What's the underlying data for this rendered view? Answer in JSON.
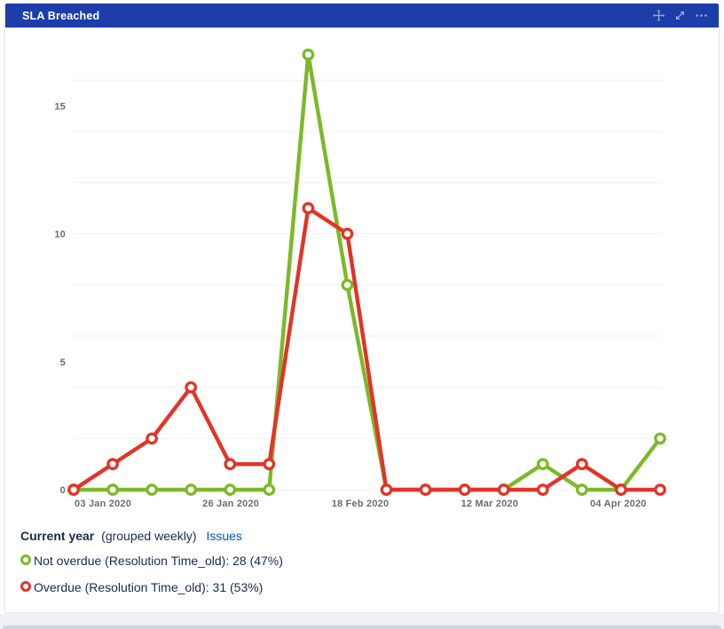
{
  "widget": {
    "title": "SLA Breached",
    "toolbar_icons": [
      "move-icon",
      "expand-icon",
      "more-icon"
    ],
    "colors": {
      "header_bg": "#1d3ea9",
      "header_text": "#ffffff",
      "icon": "#98a9e0"
    }
  },
  "chart_data": {
    "type": "line",
    "title": "SLA Breached",
    "x_unit": "week",
    "num_points": 16,
    "x_tick_labels": [
      {
        "label": "03 Jan 2020",
        "pos": 0.75
      },
      {
        "label": "26 Jan 2020",
        "pos": 4.02
      },
      {
        "label": "18 Feb 2020",
        "pos": 7.33
      },
      {
        "label": "12 Mar 2020",
        "pos": 10.64
      },
      {
        "label": "04 Apr 2020",
        "pos": 13.93
      }
    ],
    "y_ticks": [
      0,
      5,
      10,
      15
    ],
    "ylim": [
      0,
      17
    ],
    "gridline_step": 2,
    "grid_on": true,
    "legend_position": "bottom-left",
    "series": [
      {
        "name": "Not overdue (Resolution Time_old)",
        "color": "#7cb928",
        "values": [
          0,
          0,
          0,
          0,
          0,
          0,
          17,
          8,
          0,
          0,
          0,
          0,
          1,
          0,
          0,
          2
        ],
        "total": 28,
        "percent": "47%",
        "legend_label": "Not overdue (Resolution Time_old): 28 (47%)"
      },
      {
        "name": "Overdue (Resolution Time_old)",
        "color": "#e13428",
        "values": [
          0,
          1,
          2,
          4,
          1,
          1,
          11,
          10,
          0,
          0,
          0,
          0,
          0,
          1,
          0,
          0
        ],
        "total": 31,
        "percent": "53%",
        "legend_label": "Overdue (Resolution Time_old): 31 (53%)"
      }
    ],
    "legend": {
      "title": "Current year",
      "subtitle": "(grouped weekly)",
      "link": "Issues"
    },
    "axis_label_color": "#6d6d6d",
    "gridline_color": "#eef0f2"
  }
}
